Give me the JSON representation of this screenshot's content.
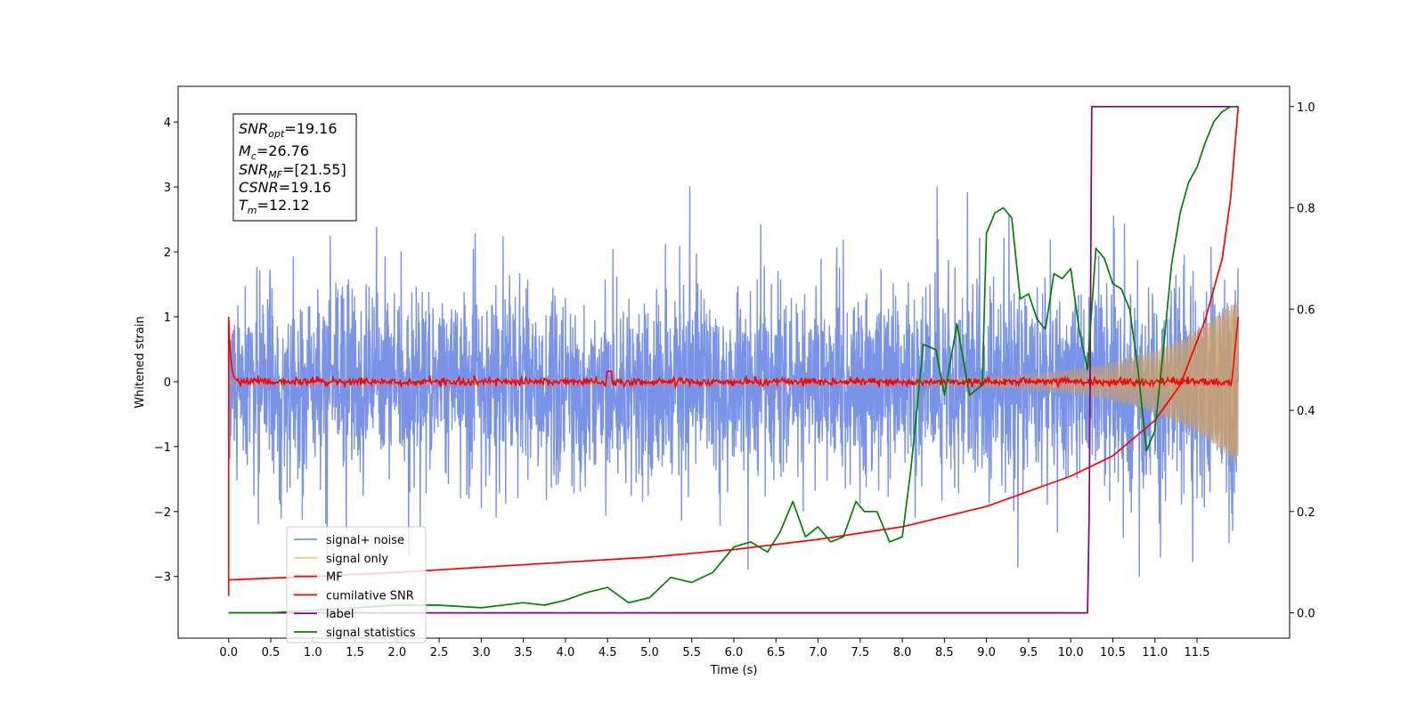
{
  "chart_data": {
    "type": "line",
    "xlabel": "Time (s)",
    "ylabel_left": "Whitened strain",
    "xlim": [
      -0.6,
      12.6
    ],
    "ylim_left": [
      -3.95,
      4.55
    ],
    "ylim_right": [
      -0.05,
      1.04
    ],
    "x_ticks": [
      0.0,
      0.5,
      1.0,
      1.5,
      2.0,
      2.5,
      3.0,
      3.5,
      4.0,
      4.5,
      5.0,
      5.5,
      6.0,
      6.5,
      7.0,
      7.5,
      8.0,
      8.5,
      9.0,
      9.5,
      10.0,
      10.5,
      11.0,
      11.5
    ],
    "x_tick_labels": [
      "0.0",
      "0.5",
      "1.0",
      "1.5",
      "2.0",
      "2.5",
      "3.0",
      "3.5",
      "4.0",
      "4.5",
      "5.0",
      "5.5",
      "6.0",
      "6.5",
      "7.0",
      "7.5",
      "8.0",
      "8.5",
      "9.0",
      "9.5",
      "10.0",
      "10.5",
      "11.0",
      "11.5"
    ],
    "y_left_ticks": [
      -3,
      -2,
      -1,
      0,
      1,
      2,
      3,
      4
    ],
    "y_left_tick_labels": [
      "−3",
      "−2",
      "−1",
      "0",
      "1",
      "2",
      "3",
      "4"
    ],
    "y_right_ticks": [
      0.0,
      0.2,
      0.4,
      0.6,
      0.8,
      1.0
    ],
    "y_right_tick_labels": [
      "0.0",
      "0.2",
      "0.4",
      "0.6",
      "0.8",
      "1.0"
    ],
    "legend_position": "lower-left",
    "annotation": [
      {
        "var": "SNR",
        "sub": "opt",
        "value": "=19.16"
      },
      {
        "var": "M",
        "sub": "c",
        "value": "=26.76"
      },
      {
        "var": "SNR",
        "sub": "MF",
        "value": "=[21.55]"
      },
      {
        "var": "CSNR",
        "sub": "",
        "value": "=19.16"
      },
      {
        "var": "T",
        "sub": "m",
        "value": "=12.12"
      }
    ],
    "series": [
      {
        "name": "signal+ noise",
        "color": "#7893e8",
        "axis": "left",
        "kind": "noise",
        "x_start": 0.0,
        "x_end": 11.99,
        "envelope_std": 0.72,
        "envelope_peak": 3.0
      },
      {
        "name": "signal only",
        "color": "#f5c97a",
        "axis": "left",
        "kind": "chirp",
        "x_start": 0.0,
        "x_end": 11.99,
        "amp_start": 0.04,
        "amp_end": 1.3
      },
      {
        "name": "MF",
        "color": "#ff0000",
        "axis": "left",
        "kind": "mf",
        "x": [
          0.0,
          0.02,
          0.05,
          0.1,
          4.5,
          4.55,
          11.9,
          11.99
        ],
        "y": [
          1.0,
          0.2,
          0.02,
          0.0,
          0.0,
          0.15,
          0.1,
          1.0
        ]
      },
      {
        "name": "cumilative SNR",
        "color": "#ff0000",
        "axis": "right",
        "x": [
          0.0,
          1.0,
          2.0,
          3.0,
          4.0,
          5.0,
          6.0,
          7.0,
          8.0,
          9.0,
          10.0,
          10.5,
          11.0,
          11.3,
          11.6,
          11.8,
          11.9,
          11.99
        ],
        "y": [
          0.065,
          0.072,
          0.08,
          0.09,
          0.1,
          0.11,
          0.125,
          0.145,
          0.17,
          0.21,
          0.27,
          0.31,
          0.38,
          0.45,
          0.58,
          0.7,
          0.82,
          1.0
        ]
      },
      {
        "name": "label",
        "color": "#800080",
        "axis": "right",
        "x": [
          0.0,
          10.2,
          10.22,
          10.25,
          11.99
        ],
        "y": [
          0.0,
          0.0,
          0.2,
          1.0,
          1.0
        ]
      },
      {
        "name": "signal statistics",
        "color": "#008000",
        "axis": "right",
        "x": [
          0.0,
          0.5,
          1.0,
          1.5,
          2.0,
          2.5,
          3.0,
          3.5,
          3.75,
          4.0,
          4.25,
          4.5,
          4.75,
          5.0,
          5.25,
          5.5,
          5.75,
          6.0,
          6.2,
          6.4,
          6.55,
          6.7,
          6.85,
          7.0,
          7.15,
          7.3,
          7.45,
          7.55,
          7.7,
          7.85,
          8.0,
          8.1,
          8.25,
          8.4,
          8.5,
          8.65,
          8.8,
          8.95,
          9.0,
          9.1,
          9.2,
          9.3,
          9.4,
          9.5,
          9.6,
          9.7,
          9.8,
          9.9,
          10.0,
          10.1,
          10.2,
          10.3,
          10.4,
          10.5,
          10.6,
          10.7,
          10.8,
          10.9,
          11.0,
          11.1,
          11.2,
          11.3,
          11.4,
          11.5,
          11.6,
          11.7,
          11.8,
          11.9,
          11.95
        ],
        "y": [
          0.0,
          0.0,
          0.005,
          0.01,
          0.015,
          0.015,
          0.01,
          0.02,
          0.015,
          0.025,
          0.04,
          0.05,
          0.02,
          0.03,
          0.07,
          0.06,
          0.08,
          0.13,
          0.14,
          0.12,
          0.16,
          0.22,
          0.15,
          0.17,
          0.14,
          0.15,
          0.22,
          0.2,
          0.2,
          0.14,
          0.15,
          0.28,
          0.53,
          0.52,
          0.43,
          0.57,
          0.43,
          0.45,
          0.75,
          0.79,
          0.8,
          0.78,
          0.62,
          0.63,
          0.58,
          0.56,
          0.67,
          0.66,
          0.68,
          0.56,
          0.48,
          0.72,
          0.7,
          0.65,
          0.64,
          0.6,
          0.48,
          0.32,
          0.36,
          0.52,
          0.69,
          0.79,
          0.85,
          0.88,
          0.93,
          0.97,
          0.99,
          1.0,
          1.0
        ]
      }
    ]
  }
}
